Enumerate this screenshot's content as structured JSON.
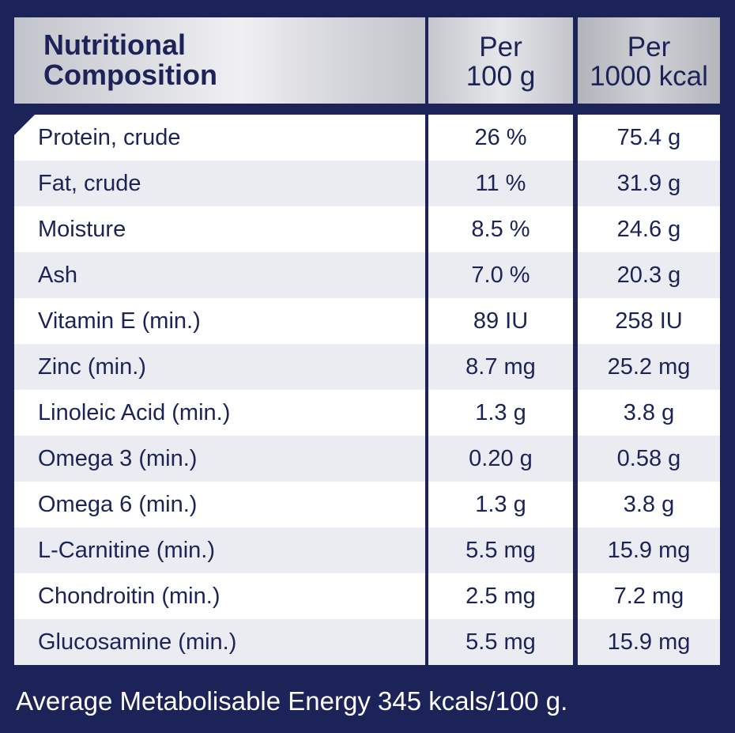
{
  "header": {
    "name_line1": "Nutritional",
    "name_line2": "Composition",
    "col100_line1": "Per",
    "col100_line2": "100 g",
    "col1000_line1": "Per",
    "col1000_line2": "1000 kcal"
  },
  "rows": [
    {
      "name": "Protein, crude",
      "per100": "26 %",
      "per1000": "75.4 g"
    },
    {
      "name": "Fat, crude",
      "per100": "11 %",
      "per1000": "31.9 g"
    },
    {
      "name": "Moisture",
      "per100": "8.5 %",
      "per1000": "24.6 g"
    },
    {
      "name": "Ash",
      "per100": "7.0 %",
      "per1000": "20.3 g"
    },
    {
      "name": "Vitamin E (min.)",
      "per100": "89 IU",
      "per1000": "258 IU"
    },
    {
      "name": "Zinc (min.)",
      "per100": "8.7 mg",
      "per1000": "25.2 mg"
    },
    {
      "name": "Linoleic Acid (min.)",
      "per100": "1.3 g",
      "per1000": "3.8 g"
    },
    {
      "name": "Omega 3 (min.)",
      "per100": "0.20 g",
      "per1000": "0.58 g"
    },
    {
      "name": "Omega 6 (min.)",
      "per100": "1.3 g",
      "per1000": "3.8 g"
    },
    {
      "name": "L-Carnitine (min.)",
      "per100": "5.5 mg",
      "per1000": "15.9 mg"
    },
    {
      "name": "Chondroitin (min.)",
      "per100": "2.5 mg",
      "per1000": "7.2 mg"
    },
    {
      "name": "Glucosamine (min.)",
      "per100": "5.5 mg",
      "per1000": "15.9 mg"
    }
  ],
  "footer": "Average Metabolisable Energy 345 kcals/100 g.",
  "colors": {
    "navy": "#1c2358",
    "row_alt": "#ebecf1",
    "row": "#ffffff"
  }
}
